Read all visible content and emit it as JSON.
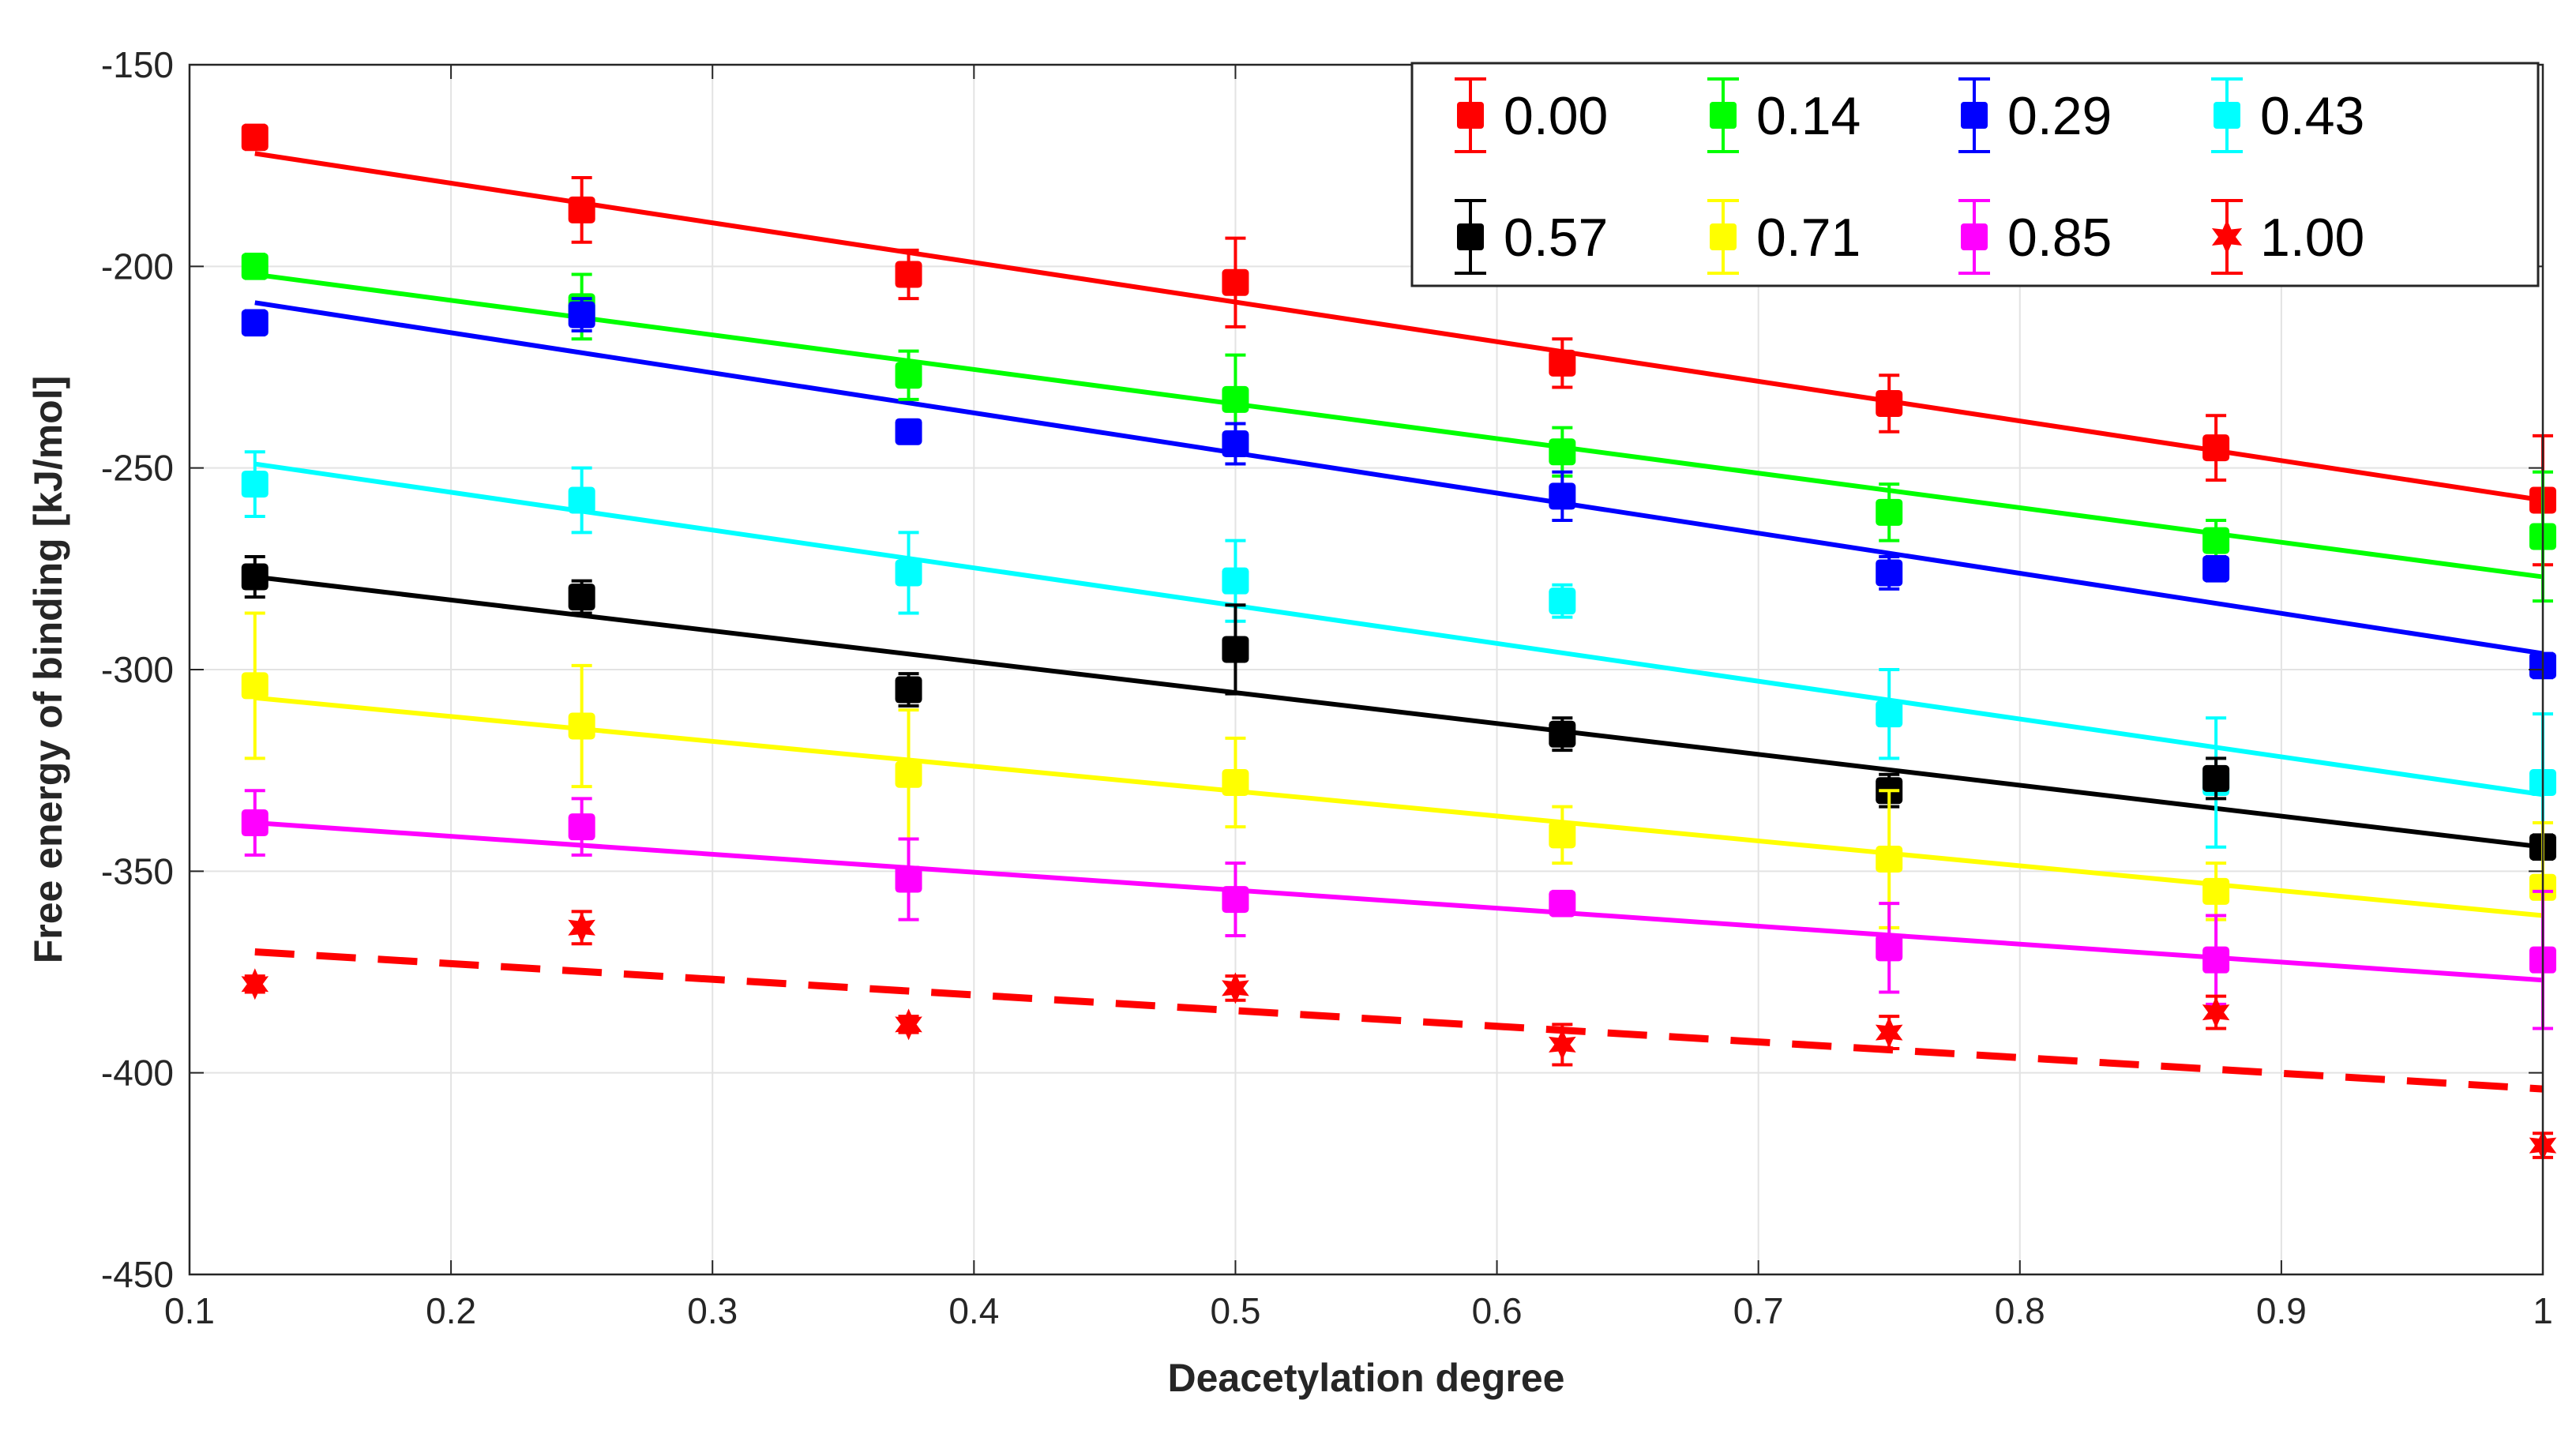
{
  "chart_data": {
    "type": "scatter",
    "title": "",
    "xlabel": "Deacetylation degree",
    "ylabel": "Free energy of binding [kJ/mol]",
    "xlim": [
      0.1,
      1
    ],
    "ylim": [
      -450,
      -150
    ],
    "xticks": [
      0.1,
      0.2,
      0.3,
      0.4,
      0.5,
      0.6,
      0.7,
      0.8,
      0.9,
      1
    ],
    "xtick_labels": [
      "0.1",
      "0.2",
      "0.3",
      "0.4",
      "0.5",
      "0.6",
      "0.7",
      "0.8",
      "0.9",
      "1"
    ],
    "yticks": [
      -150,
      -200,
      -250,
      -300,
      -350,
      -400,
      -450
    ],
    "ytick_labels": [
      "-150",
      "-200",
      "-250",
      "-300",
      "-350",
      "-400",
      "-450"
    ],
    "grid": true,
    "legend_position": "top-right",
    "x": [
      0.125,
      0.25,
      0.375,
      0.5,
      0.625,
      0.75,
      0.875,
      1.0
    ],
    "series": [
      {
        "name": "0.00",
        "color": "#ff0000",
        "marker": "square",
        "line_style": "solid",
        "values": [
          -168,
          -186,
          -202,
          -204,
          -224,
          -234,
          -245,
          -258
        ],
        "errors": [
          3,
          8,
          6,
          11,
          6,
          7,
          8,
          16
        ],
        "fit": [
          -172,
          -258
        ]
      },
      {
        "name": "0.14",
        "color": "#00ff00",
        "marker": "square",
        "line_style": "solid",
        "values": [
          -200,
          -210,
          -227,
          -233,
          -246,
          -261,
          -268,
          -267
        ],
        "errors": [
          3,
          8,
          6,
          11,
          6,
          7,
          5,
          16
        ],
        "fit": [
          -202,
          -277
        ]
      },
      {
        "name": "0.29",
        "color": "#0000ff",
        "marker": "square",
        "line_style": "solid",
        "values": [
          -214,
          -212,
          -241,
          -244,
          -257,
          -276,
          -275,
          -299
        ],
        "errors": [
          3,
          4,
          2,
          5,
          6,
          4,
          3,
          3
        ],
        "fit": [
          -209,
          -296
        ]
      },
      {
        "name": "0.43",
        "color": "#00ffff",
        "marker": "square",
        "line_style": "solid",
        "values": [
          -254,
          -258,
          -276,
          -278,
          -283,
          -311,
          -328,
          -328
        ],
        "errors": [
          8,
          8,
          10,
          10,
          4,
          11,
          16,
          17
        ],
        "fit": [
          -249,
          -331
        ]
      },
      {
        "name": "0.57",
        "color": "#000000",
        "marker": "square",
        "line_style": "solid",
        "values": [
          -277,
          -282,
          -305,
          -295,
          -316,
          -330,
          -327,
          -344
        ],
        "errors": [
          5,
          4,
          4,
          11,
          4,
          4,
          5,
          3
        ],
        "fit": [
          -277,
          -344
        ]
      },
      {
        "name": "0.71",
        "color": "#ffff00",
        "marker": "square",
        "line_style": "solid",
        "values": [
          -304,
          -314,
          -326,
          -328,
          -341,
          -347,
          -355,
          -354
        ],
        "errors": [
          18,
          15,
          16,
          11,
          7,
          17,
          7,
          16
        ],
        "fit": [
          -307,
          -361
        ]
      },
      {
        "name": "0.85",
        "color": "#ff00ff",
        "marker": "square",
        "line_style": "solid",
        "values": [
          -338,
          -339,
          -352,
          -357,
          -358,
          -369,
          -372,
          -372
        ],
        "errors": [
          8,
          7,
          10,
          9,
          3,
          11,
          11,
          17
        ],
        "fit": [
          -338,
          -377
        ]
      },
      {
        "name": "1.00",
        "color": "#ff0000",
        "marker": "star",
        "line_style": "dashed",
        "values": [
          -378,
          -364,
          -388,
          -379,
          -393,
          -390,
          -385,
          -418
        ],
        "errors": [
          2,
          4,
          2,
          3,
          5,
          4,
          4,
          3
        ],
        "fit": [
          -370,
          -404
        ]
      }
    ]
  }
}
